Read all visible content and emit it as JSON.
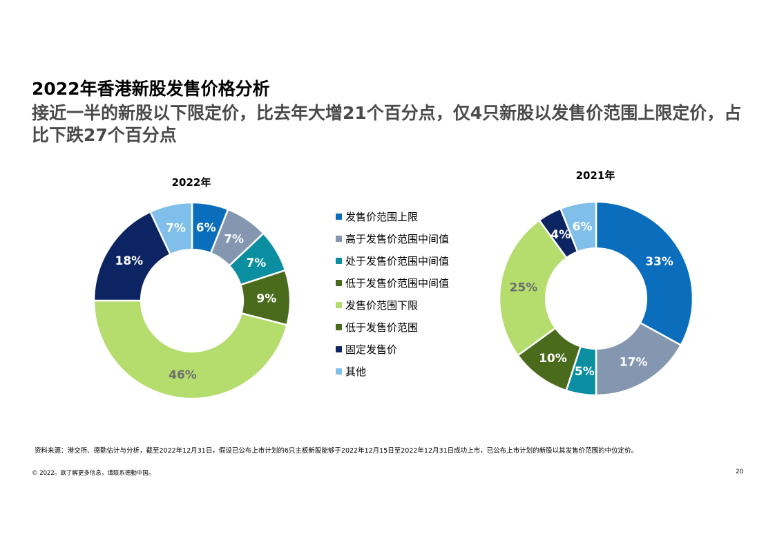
{
  "page": {
    "title": "2022年香港新股发售价格分析",
    "subtitle": "接近一半的新股以下限定价，比去年大增21个百分点，仅4只新股以发售价范围上限定价，占比下跌27个百分点",
    "source": "资料来源：港交所、德勤估计与分析，截至2022年12月31日，假设已公布上市计划的6只主板新股能够于2022年12月15日至2022年12月31日成功上市，已公布上市计划的新股以其发售价范围的中位定价。",
    "copyright": "© 2022。欲了解更多信息，请联系德勤中国。",
    "page_number": "20"
  },
  "legend": [
    {
      "label": "发售价范围上限",
      "color": "#0a6ebd"
    },
    {
      "label": "高于发售价范围中间值",
      "color": "#8596b0"
    },
    {
      "label": "处于发售价范围中间值",
      "color": "#0a8ea0"
    },
    {
      "label": "低于发售价范围中间值",
      "color": "#4a6b1c"
    },
    {
      "label": "发售价范围下限",
      "color": "#b5dd6e"
    },
    {
      "label": "低于发售价范围",
      "color": "#4a6b1c"
    },
    {
      "label": "固定发售价",
      "color": "#0c2461"
    },
    {
      "label": "其他",
      "color": "#7fbfea"
    }
  ],
  "chart_data": [
    {
      "type": "pie",
      "title": "2022年",
      "slices": [
        {
          "label": "发售价范围上限",
          "value": 6,
          "display": "6%",
          "color": "#0a6ebd",
          "label_color": "#ffffff"
        },
        {
          "label": "高于发售价范围中间值",
          "value": 7,
          "display": "7%",
          "color": "#8596b0",
          "label_color": "#ffffff"
        },
        {
          "label": "处于发售价范围中间值",
          "value": 7,
          "display": "7%",
          "color": "#0a8ea0",
          "label_color": "#ffffff"
        },
        {
          "label": "低于发售价范围中间值",
          "value": 9,
          "display": "9%",
          "color": "#4a6b1c",
          "label_color": "#ffffff"
        },
        {
          "label": "发售价范围下限",
          "value": 46,
          "display": "46%",
          "color": "#b5dd6e",
          "label_color": "#6e6e6e"
        },
        {
          "label": "固定发售价",
          "value": 18,
          "display": "18%",
          "color": "#0c2461",
          "label_color": "#ffffff"
        },
        {
          "label": "其他",
          "value": 7,
          "display": "7%",
          "color": "#7fbfea",
          "label_color": "#ffffff"
        }
      ]
    },
    {
      "type": "pie",
      "title": "2021年",
      "slices": [
        {
          "label": "发售价范围上限",
          "value": 33,
          "display": "33%",
          "color": "#0a6ebd",
          "label_color": "#ffffff"
        },
        {
          "label": "高于发售价范围中间值",
          "value": 17,
          "display": "17%",
          "color": "#8596b0",
          "label_color": "#ffffff"
        },
        {
          "label": "处于发售价范围中间值",
          "value": 5,
          "display": "5%",
          "color": "#0a8ea0",
          "label_color": "#ffffff"
        },
        {
          "label": "低于发售价范围中间值",
          "value": 10,
          "display": "10%",
          "color": "#4a6b1c",
          "label_color": "#ffffff"
        },
        {
          "label": "发售价范围下限",
          "value": 25,
          "display": "25%",
          "color": "#b5dd6e",
          "label_color": "#6e6e6e"
        },
        {
          "label": "固定发售价",
          "value": 4,
          "display": "4%",
          "color": "#0c2461",
          "label_color": "#ffffff"
        },
        {
          "label": "其他",
          "value": 6,
          "display": "6%",
          "color": "#7fbfea",
          "label_color": "#ffffff"
        }
      ]
    }
  ]
}
